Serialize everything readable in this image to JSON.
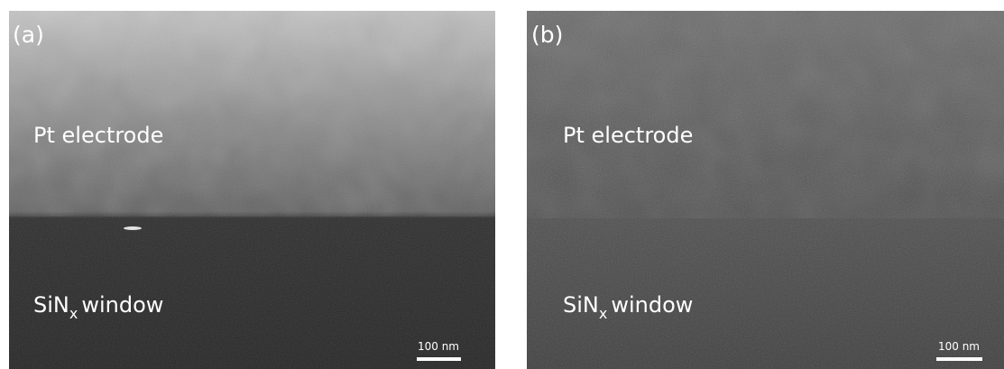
{
  "panels": [
    {
      "label": "(a)",
      "top_region": "Pt electrode",
      "bottom_region": {
        "base": "SiN",
        "subscript": "x",
        "rest": "window"
      },
      "scale_bar": "100 nm"
    },
    {
      "label": "(b)",
      "top_region": "Pt electrode",
      "bottom_region": {
        "base": "SiN",
        "subscript": "x",
        "rest": "window"
      },
      "scale_bar": "100 nm"
    }
  ]
}
